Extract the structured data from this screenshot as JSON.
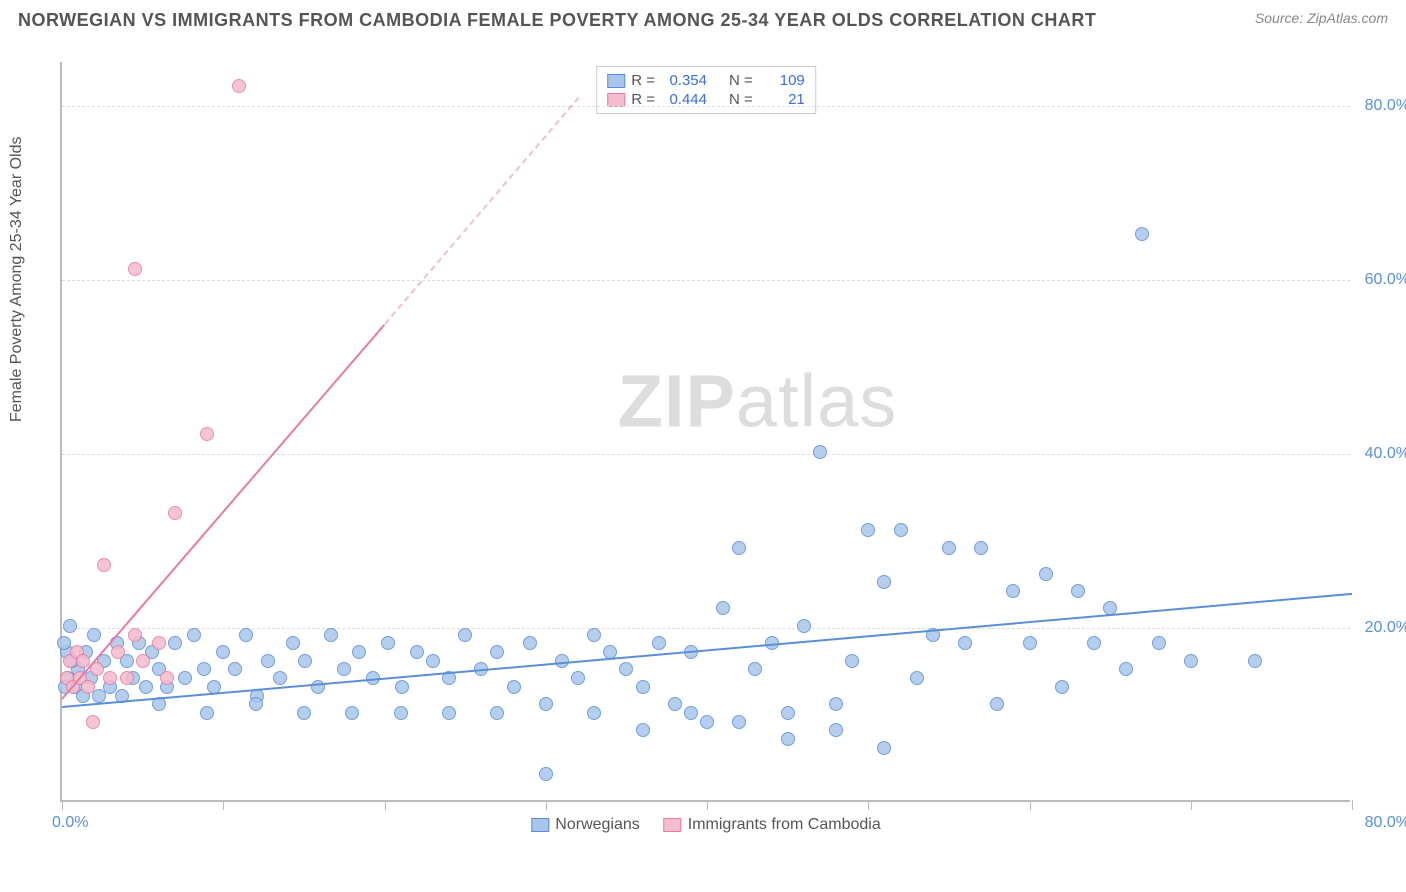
{
  "header": {
    "title": "NORWEGIAN VS IMMIGRANTS FROM CAMBODIA FEMALE POVERTY AMONG 25-34 YEAR OLDS CORRELATION CHART",
    "source": "Source: ZipAtlas.com"
  },
  "watermark": {
    "bold": "ZIP",
    "light": "atlas"
  },
  "chart": {
    "type": "scatter",
    "ylabel": "Female Poverty Among 25-34 Year Olds",
    "xlim": [
      0,
      80
    ],
    "ylim": [
      0,
      85
    ],
    "background_color": "#ffffff",
    "grid_color": "#dddddd",
    "axis_color": "#bbbbbb",
    "tick_label_color": "#5a8fd6",
    "y_gridlines": [
      20,
      40,
      60,
      80
    ],
    "y_tick_labels": [
      "20.0%",
      "40.0%",
      "60.0%",
      "80.0%"
    ],
    "x_minor_ticks": [
      0,
      10,
      20,
      30,
      40,
      50,
      60,
      70,
      80
    ],
    "x_tick_left": "0.0%",
    "x_tick_right": "80.0%",
    "marker_radius": 7,
    "marker_fill_opacity": 0.35,
    "series": [
      {
        "name": "Norwegians",
        "color": "#5a8fd6",
        "fill": "#a9c6ea",
        "R": "0.354",
        "N": "109",
        "trend": {
          "x1": 0,
          "y1": 11,
          "x2": 80,
          "y2": 24,
          "dash": false
        },
        "points": [
          [
            0.5,
            20
          ],
          [
            0.8,
            13
          ],
          [
            1,
            15
          ],
          [
            1.3,
            12
          ],
          [
            1.5,
            17
          ],
          [
            1.8,
            14
          ],
          [
            2,
            19
          ],
          [
            2.3,
            12
          ],
          [
            2.6,
            16
          ],
          [
            3,
            13
          ],
          [
            3.4,
            18
          ],
          [
            3.7,
            12
          ],
          [
            4,
            16
          ],
          [
            4.4,
            14
          ],
          [
            4.8,
            18
          ],
          [
            5.2,
            13
          ],
          [
            5.6,
            17
          ],
          [
            6,
            15
          ],
          [
            6.5,
            13
          ],
          [
            7,
            18
          ],
          [
            7.6,
            14
          ],
          [
            8.2,
            19
          ],
          [
            8.8,
            15
          ],
          [
            9.4,
            13
          ],
          [
            10,
            17
          ],
          [
            10.7,
            15
          ],
          [
            11.4,
            19
          ],
          [
            12.1,
            12
          ],
          [
            12.8,
            16
          ],
          [
            13.5,
            14
          ],
          [
            14.3,
            18
          ],
          [
            15.1,
            16
          ],
          [
            15.9,
            13
          ],
          [
            16.7,
            19
          ],
          [
            17.5,
            15
          ],
          [
            18.4,
            17
          ],
          [
            19.3,
            14
          ],
          [
            20.2,
            18
          ],
          [
            21.1,
            13
          ],
          [
            22,
            17
          ],
          [
            23,
            16
          ],
          [
            24,
            14
          ],
          [
            25,
            19
          ],
          [
            26,
            15
          ],
          [
            27,
            17
          ],
          [
            28,
            13
          ],
          [
            29,
            18
          ],
          [
            30,
            3
          ],
          [
            31,
            16
          ],
          [
            32,
            14
          ],
          [
            33,
            19
          ],
          [
            34,
            17
          ],
          [
            35,
            15
          ],
          [
            36,
            13
          ],
          [
            37,
            18
          ],
          [
            38,
            11
          ],
          [
            39,
            17
          ],
          [
            40,
            9
          ],
          [
            41,
            22
          ],
          [
            42,
            29
          ],
          [
            43,
            15
          ],
          [
            44,
            18
          ],
          [
            45,
            7
          ],
          [
            46,
            20
          ],
          [
            47,
            40
          ],
          [
            48,
            8
          ],
          [
            49,
            16
          ],
          [
            50,
            31
          ],
          [
            51,
            25
          ],
          [
            52,
            31
          ],
          [
            53,
            14
          ],
          [
            54,
            19
          ],
          [
            55,
            29
          ],
          [
            56,
            18
          ],
          [
            57,
            29
          ],
          [
            58,
            11
          ],
          [
            59,
            24
          ],
          [
            60,
            18
          ],
          [
            61,
            26
          ],
          [
            62,
            13
          ],
          [
            63,
            24
          ],
          [
            64,
            18
          ],
          [
            65,
            22
          ],
          [
            66,
            15
          ],
          [
            67,
            65
          ],
          [
            68,
            18
          ],
          [
            70,
            16
          ],
          [
            74,
            16
          ],
          [
            51,
            6
          ],
          [
            33,
            10
          ],
          [
            36,
            8
          ],
          [
            39,
            10
          ],
          [
            42,
            9
          ],
          [
            45,
            10
          ],
          [
            48,
            11
          ],
          [
            24,
            10
          ],
          [
            27,
            10
          ],
          [
            30,
            11
          ],
          [
            21,
            10
          ],
          [
            18,
            10
          ],
          [
            15,
            10
          ],
          [
            12,
            11
          ],
          [
            9,
            10
          ],
          [
            6,
            11
          ],
          [
            0.3,
            17
          ],
          [
            0.4,
            14
          ],
          [
            0.6,
            16
          ],
          [
            0.2,
            13
          ],
          [
            0.1,
            18
          ]
        ]
      },
      {
        "name": "Immigrants from Cambodia",
        "color": "#e87ba0",
        "fill": "#f4bccf",
        "R": "0.444",
        "N": "21",
        "trend": {
          "x1": 0,
          "y1": 12,
          "x2": 20,
          "y2": 55,
          "dash_after": true,
          "x3": 32,
          "y3": 81
        },
        "points": [
          [
            0.3,
            14
          ],
          [
            0.5,
            16
          ],
          [
            0.7,
            13
          ],
          [
            0.9,
            17
          ],
          [
            1.1,
            14
          ],
          [
            1.3,
            16
          ],
          [
            1.6,
            13
          ],
          [
            1.9,
            9
          ],
          [
            2.2,
            15
          ],
          [
            2.6,
            27
          ],
          [
            3,
            14
          ],
          [
            3.5,
            17
          ],
          [
            4,
            14
          ],
          [
            4.5,
            19
          ],
          [
            5,
            16
          ],
          [
            6,
            18
          ],
          [
            6.5,
            14
          ],
          [
            7,
            33
          ],
          [
            9,
            42
          ],
          [
            4.5,
            61
          ],
          [
            11,
            82
          ]
        ]
      }
    ],
    "legend_top": {
      "r_label": "R =",
      "n_label": "N ="
    },
    "legend_bottom": {
      "items": [
        "Norwegians",
        "Immigrants from Cambodia"
      ]
    }
  }
}
